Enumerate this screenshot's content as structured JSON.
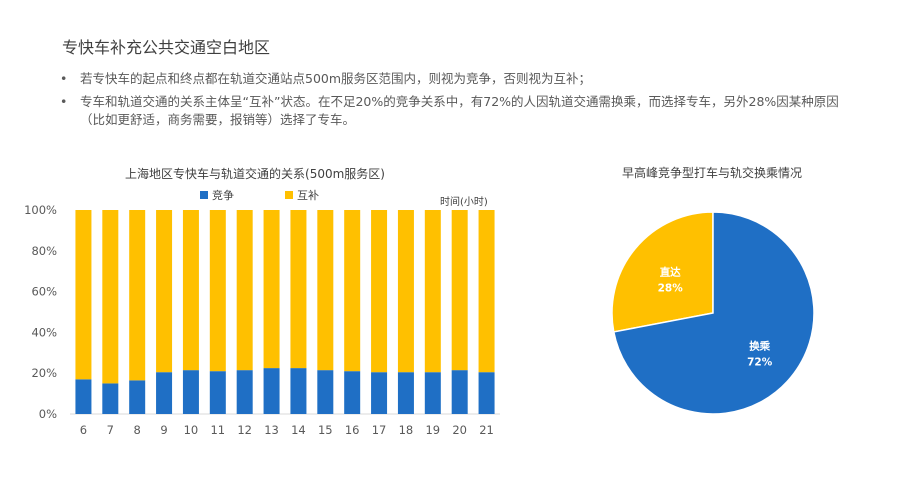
{
  "slide": {
    "title": "专快车补充公共交通空白地区",
    "bullets": [
      "若专快车的起点和终点都在轨道交通站点500m服务区范围内，则视为竞争，否则视为互补；",
      "专车和轨道交通的关系主体呈“互补”状态。在不足20%的竞争关系中，有72%的人因轨道交通需换乘，而选择专车，另外28%因某种原因（比如更舒适，商务需要，报销等）选择了专车。"
    ],
    "bullet_symbol": "•"
  },
  "chart_data": [
    {
      "type": "bar",
      "stacked": true,
      "title": "上海地区专快车与轨道交通的关系(500m服务区)",
      "xlabel": "时间(小时)",
      "categories": [
        "6",
        "7",
        "8",
        "9",
        "10",
        "11",
        "12",
        "13",
        "14",
        "15",
        "16",
        "17",
        "18",
        "19",
        "20",
        "21"
      ],
      "series": [
        {
          "name": "竞争",
          "color": "#1F6FC5",
          "values": [
            17,
            15,
            16.5,
            20.5,
            21.5,
            21,
            21.5,
            22.5,
            22.5,
            21.5,
            21,
            20.5,
            20.5,
            20.5,
            21.5,
            20.5
          ]
        },
        {
          "name": "互补",
          "color": "#FFC000",
          "values": [
            83,
            85,
            83.5,
            79.5,
            78.5,
            79,
            78.5,
            77.5,
            77.5,
            78.5,
            79,
            79.5,
            79.5,
            79.5,
            78.5,
            79.5
          ]
        }
      ],
      "yticks": [
        "0%",
        "20%",
        "40%",
        "60%",
        "80%",
        "100%"
      ],
      "ylim": [
        0,
        100
      ],
      "legend": "top-center"
    },
    {
      "type": "pie",
      "title": "早高峰竞争型打车与轨交换乘情况",
      "slices": [
        {
          "label": "直达",
          "value": 28,
          "value_label": "28%",
          "color": "#FFC000"
        },
        {
          "label": "换乘",
          "value": 72,
          "value_label": "72%",
          "color": "#1F6FC5"
        }
      ]
    }
  ]
}
